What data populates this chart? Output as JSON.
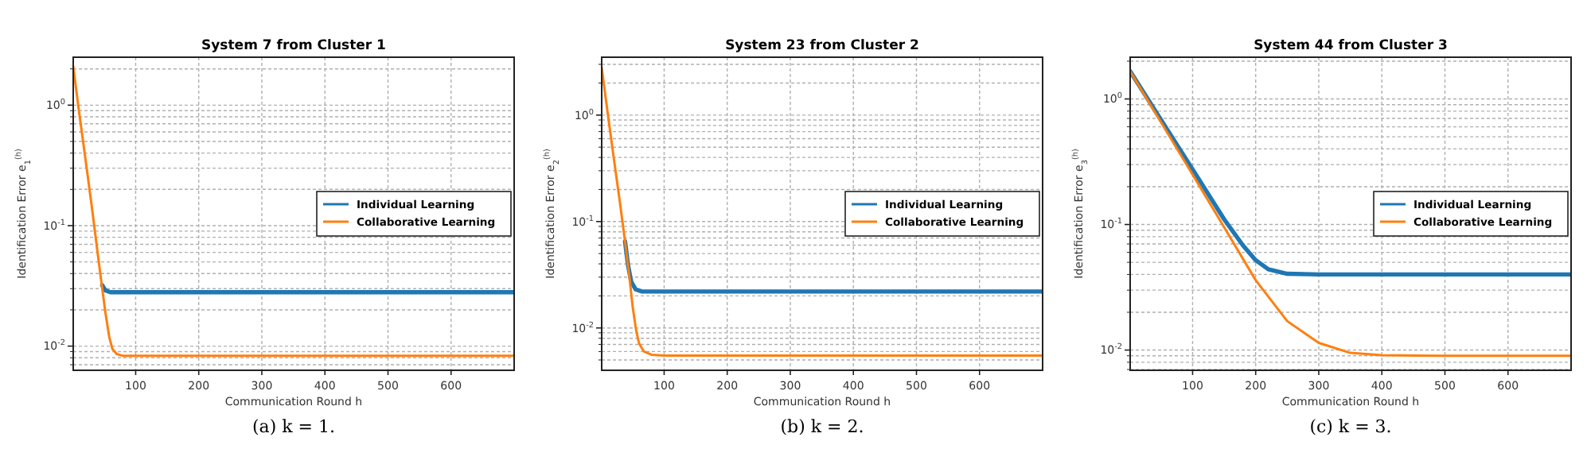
{
  "chart_data": [
    {
      "type": "line",
      "title": "System 7 from Cluster 1",
      "xlabel": "Communication Round h",
      "ylabel": "Identification Error e$_{1}$$^{(h)}$",
      "annotations": [
        "(a) k = 1."
      ],
      "log": "y",
      "grid": true,
      "legend": "right",
      "line_style": "solid",
      "xlim": [
        1,
        700
      ],
      "xticks": [
        100,
        200,
        300,
        400,
        500,
        600
      ],
      "ylim": [
        0.0063,
        2.5
      ],
      "yticks": [
        {
          "value": 0.007,
          "label": null
        },
        {
          "value": 0.008,
          "label": null
        },
        {
          "value": 0.009,
          "label": null
        },
        {
          "value": 0.01,
          "label": "10$^{-2}$"
        },
        {
          "value": 0.02,
          "label": null
        },
        {
          "value": 0.03,
          "label": null
        },
        {
          "value": 0.04,
          "label": null
        },
        {
          "value": 0.05,
          "label": null
        },
        {
          "value": 0.06,
          "label": null
        },
        {
          "value": 0.07,
          "label": null
        },
        {
          "value": 0.08,
          "label": null
        },
        {
          "value": 0.09,
          "label": null
        },
        {
          "value": 0.1,
          "label": "10$^{-1}$"
        },
        {
          "value": 0.2,
          "label": null
        },
        {
          "value": 0.3,
          "label": null
        },
        {
          "value": 0.4,
          "label": null
        },
        {
          "value": 0.5,
          "label": null
        },
        {
          "value": 0.6,
          "label": null
        },
        {
          "value": 0.7,
          "label": null
        },
        {
          "value": 0.8,
          "label": null
        },
        {
          "value": 0.9,
          "label": null
        },
        {
          "value": 1,
          "label": "10$^{0}$"
        },
        {
          "value": 2,
          "label": null
        }
      ],
      "series": [
        {
          "name": "Individual Learning",
          "color": "#1f77b4",
          "x": [
            47,
            52,
            60,
            80,
            700
          ],
          "values": [
            0.032,
            0.029,
            0.028,
            0.028,
            0.028
          ]
        },
        {
          "name": "Collaborative Learning",
          "color": "#ff7f0e",
          "x": [
            1,
            10,
            20,
            30,
            38,
            45,
            52,
            58,
            63,
            70,
            80,
            700
          ],
          "values": [
            2.1,
            0.9,
            0.37,
            0.15,
            0.07,
            0.036,
            0.019,
            0.012,
            0.0095,
            0.0086,
            0.0083,
            0.0083
          ]
        }
      ]
    },
    {
      "type": "line",
      "title": "System 23 from Cluster 2",
      "xlabel": "Communication Round h",
      "ylabel": "Identification Error e$_{2}$$^{(h)}$",
      "annotations": [
        "(b) k = 2."
      ],
      "log": "y",
      "grid": true,
      "legend": "right",
      "line_style": "solid",
      "xlim": [
        1,
        700
      ],
      "xticks": [
        100,
        200,
        300,
        400,
        500,
        600
      ],
      "ylim": [
        0.004,
        3.5
      ],
      "yticks": [
        {
          "value": 0.005,
          "label": null
        },
        {
          "value": 0.006,
          "label": null
        },
        {
          "value": 0.007,
          "label": null
        },
        {
          "value": 0.008,
          "label": null
        },
        {
          "value": 0.009,
          "label": null
        },
        {
          "value": 0.01,
          "label": "10$^{-2}$"
        },
        {
          "value": 0.02,
          "label": null
        },
        {
          "value": 0.03,
          "label": null
        },
        {
          "value": 0.04,
          "label": null
        },
        {
          "value": 0.05,
          "label": null
        },
        {
          "value": 0.06,
          "label": null
        },
        {
          "value": 0.07,
          "label": null
        },
        {
          "value": 0.08,
          "label": null
        },
        {
          "value": 0.09,
          "label": null
        },
        {
          "value": 0.1,
          "label": "10$^{-1}$"
        },
        {
          "value": 0.2,
          "label": null
        },
        {
          "value": 0.3,
          "label": null
        },
        {
          "value": 0.4,
          "label": null
        },
        {
          "value": 0.5,
          "label": null
        },
        {
          "value": 0.6,
          "label": null
        },
        {
          "value": 0.7,
          "label": null
        },
        {
          "value": 0.8,
          "label": null
        },
        {
          "value": 0.9,
          "label": null
        },
        {
          "value": 1,
          "label": "10$^{0}$"
        },
        {
          "value": 2,
          "label": null
        },
        {
          "value": 3,
          "label": null
        }
      ],
      "series": [
        {
          "name": "Individual Learning",
          "color": "#1f77b4",
          "x": [
            38,
            43,
            48,
            55,
            65,
            700
          ],
          "values": [
            0.065,
            0.038,
            0.027,
            0.023,
            0.022,
            0.022
          ]
        },
        {
          "name": "Collaborative Learning",
          "color": "#ff7f0e",
          "x": [
            1,
            10,
            20,
            30,
            38,
            45,
            50,
            55,
            60,
            68,
            80,
            100,
            700
          ],
          "values": [
            2.8,
            1.1,
            0.4,
            0.15,
            0.065,
            0.03,
            0.016,
            0.01,
            0.0072,
            0.006,
            0.0056,
            0.0055,
            0.0055
          ]
        }
      ]
    },
    {
      "type": "line",
      "title": "System 44 from Cluster 3",
      "xlabel": "Communication Round h",
      "ylabel": "Identification Error e$_{3}$$^{(h)}$",
      "annotations": [
        "(c) k = 3."
      ],
      "log": "y",
      "grid": true,
      "legend": "right",
      "line_style": "solid",
      "xlim": [
        1,
        700
      ],
      "xticks": [
        100,
        200,
        300,
        400,
        500,
        600
      ],
      "ylim": [
        0.0069,
        2.15
      ],
      "yticks": [
        {
          "value": 0.007,
          "label": null
        },
        {
          "value": 0.008,
          "label": null
        },
        {
          "value": 0.009,
          "label": null
        },
        {
          "value": 0.01,
          "label": "10$^{-2}$"
        },
        {
          "value": 0.02,
          "label": null
        },
        {
          "value": 0.03,
          "label": null
        },
        {
          "value": 0.04,
          "label": null
        },
        {
          "value": 0.05,
          "label": null
        },
        {
          "value": 0.06,
          "label": null
        },
        {
          "value": 0.07,
          "label": null
        },
        {
          "value": 0.08,
          "label": null
        },
        {
          "value": 0.09,
          "label": null
        },
        {
          "value": 0.1,
          "label": "10$^{-1}$"
        },
        {
          "value": 0.2,
          "label": null
        },
        {
          "value": 0.3,
          "label": null
        },
        {
          "value": 0.4,
          "label": null
        },
        {
          "value": 0.5,
          "label": null
        },
        {
          "value": 0.6,
          "label": null
        },
        {
          "value": 0.7,
          "label": null
        },
        {
          "value": 0.8,
          "label": null
        },
        {
          "value": 0.9,
          "label": null
        },
        {
          "value": 1,
          "label": "10$^{0}$"
        },
        {
          "value": 2,
          "label": null
        }
      ],
      "series": [
        {
          "name": "Individual Learning",
          "color": "#1f77b4",
          "x": [
            1,
            50,
            100,
            150,
            180,
            200,
            220,
            250,
            300,
            700
          ],
          "values": [
            1.66,
            0.68,
            0.275,
            0.11,
            0.068,
            0.052,
            0.044,
            0.0405,
            0.04,
            0.04
          ]
        },
        {
          "name": "Collaborative Learning",
          "color": "#ff7f0e",
          "x": [
            1,
            50,
            100,
            150,
            200,
            250,
            300,
            350,
            400,
            500,
            700
          ],
          "values": [
            1.66,
            0.65,
            0.25,
            0.095,
            0.036,
            0.017,
            0.0114,
            0.0095,
            0.0091,
            0.009,
            0.009
          ]
        }
      ]
    }
  ]
}
